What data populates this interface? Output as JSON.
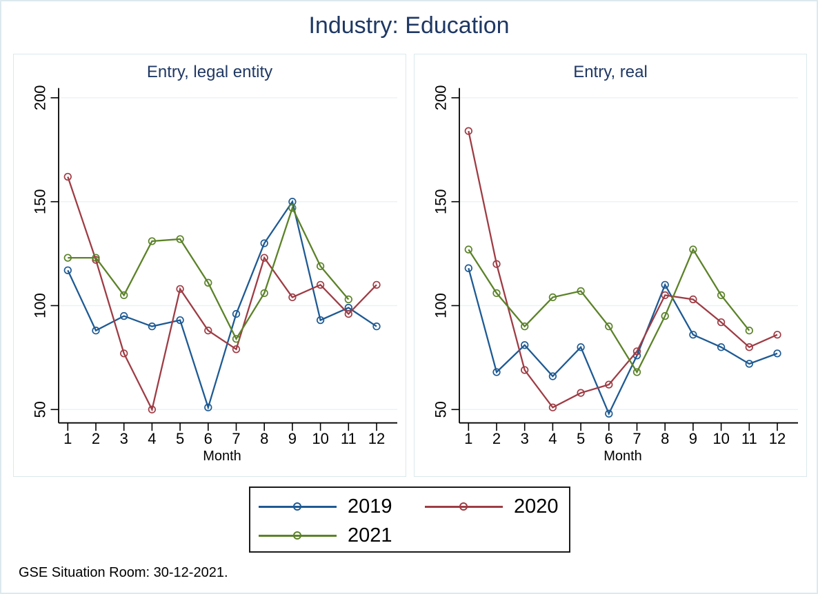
{
  "title": "Industry: Education",
  "footer": "GSE Situation Room: 30-12-2021.",
  "colors": {
    "title_navy": "#1f3864",
    "axis_black": "#000000",
    "gridline": "#e9f2f5",
    "series_2019": "#1e5a93",
    "series_2020": "#9e3c44",
    "series_2021": "#5b8228"
  },
  "legend": {
    "position": "bottom",
    "items": [
      {
        "label": "2019",
        "color": "#1e5a93"
      },
      {
        "label": "2020",
        "color": "#9e3c44"
      },
      {
        "label": "2021",
        "color": "#5b8228"
      }
    ]
  },
  "chart_data": [
    {
      "type": "line",
      "title": "Entry, legal entity",
      "xlabel": "Month",
      "x": [
        1,
        2,
        3,
        4,
        5,
        6,
        7,
        8,
        9,
        10,
        11,
        12
      ],
      "yticks": [
        50,
        100,
        150,
        200
      ],
      "ylim": [
        44,
        205
      ],
      "grid": true,
      "legend_position": "bottom",
      "series": [
        {
          "name": "2019",
          "color": "#1e5a93",
          "values": [
            117,
            88,
            95,
            90,
            93,
            51,
            96,
            130,
            150,
            93,
            99,
            90
          ]
        },
        {
          "name": "2020",
          "color": "#9e3c44",
          "values": [
            162,
            122,
            77,
            50,
            108,
            88,
            79,
            123,
            104,
            110,
            96,
            110
          ]
        },
        {
          "name": "2021",
          "color": "#5b8228",
          "values": [
            123,
            123,
            105,
            131,
            132,
            111,
            84,
            106,
            147,
            119,
            103,
            null
          ]
        }
      ]
    },
    {
      "type": "line",
      "title": "Entry, real",
      "xlabel": "Month",
      "x": [
        1,
        2,
        3,
        4,
        5,
        6,
        7,
        8,
        9,
        10,
        11,
        12
      ],
      "yticks": [
        50,
        100,
        150,
        200
      ],
      "ylim": [
        44,
        205
      ],
      "grid": true,
      "legend_position": "bottom",
      "series": [
        {
          "name": "2019",
          "color": "#1e5a93",
          "values": [
            118,
            68,
            81,
            66,
            80,
            48,
            76,
            110,
            86,
            80,
            72,
            77
          ]
        },
        {
          "name": "2020",
          "color": "#9e3c44",
          "values": [
            184,
            120,
            69,
            51,
            58,
            62,
            78,
            105,
            103,
            92,
            80,
            86
          ]
        },
        {
          "name": "2021",
          "color": "#5b8228",
          "values": [
            127,
            106,
            90,
            104,
            107,
            90,
            68,
            95,
            127,
            105,
            88,
            null
          ]
        }
      ]
    }
  ]
}
